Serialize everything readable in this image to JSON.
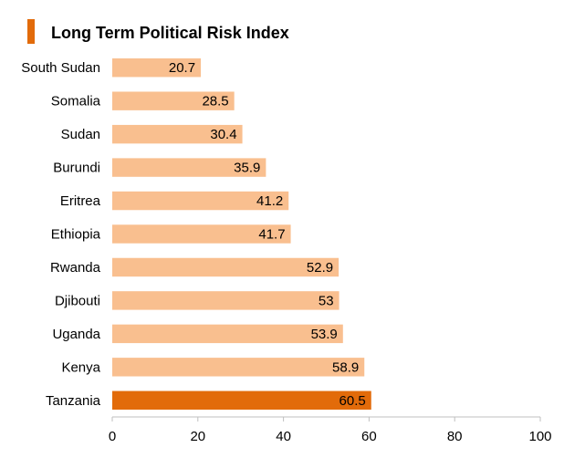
{
  "chart_data": {
    "type": "bar",
    "orientation": "horizontal",
    "title": "Long Term Political Risk Index",
    "categories": [
      "South Sudan",
      "Somalia",
      "Sudan",
      "Burundi",
      "Eritrea",
      "Ethiopia",
      "Rwanda",
      "Djibouti",
      "Uganda",
      "Kenya",
      "Tanzania"
    ],
    "values": [
      20.7,
      28.5,
      30.4,
      35.9,
      41.2,
      41.7,
      52.9,
      53,
      53.9,
      58.9,
      60.5
    ],
    "value_labels": [
      "20.7",
      "28.5",
      "30.4",
      "35.9",
      "41.2",
      "41.7",
      "52.9",
      "53",
      "53.9",
      "58.9",
      "60.5"
    ],
    "highlighted_category": "Tanzania",
    "xlim": [
      0,
      100
    ],
    "xticks": [
      0,
      20,
      40,
      60,
      80,
      100
    ],
    "xtick_labels": [
      "0",
      "20",
      "40",
      "60",
      "80",
      "100"
    ],
    "xlabel": "",
    "ylabel": "",
    "grid": false,
    "legend": "none",
    "colors": {
      "bar": "#f9bf8f",
      "bar_highlight": "#e26b0a",
      "title_marker": "#e26b0a",
      "axis": "#bfbfbf"
    }
  }
}
